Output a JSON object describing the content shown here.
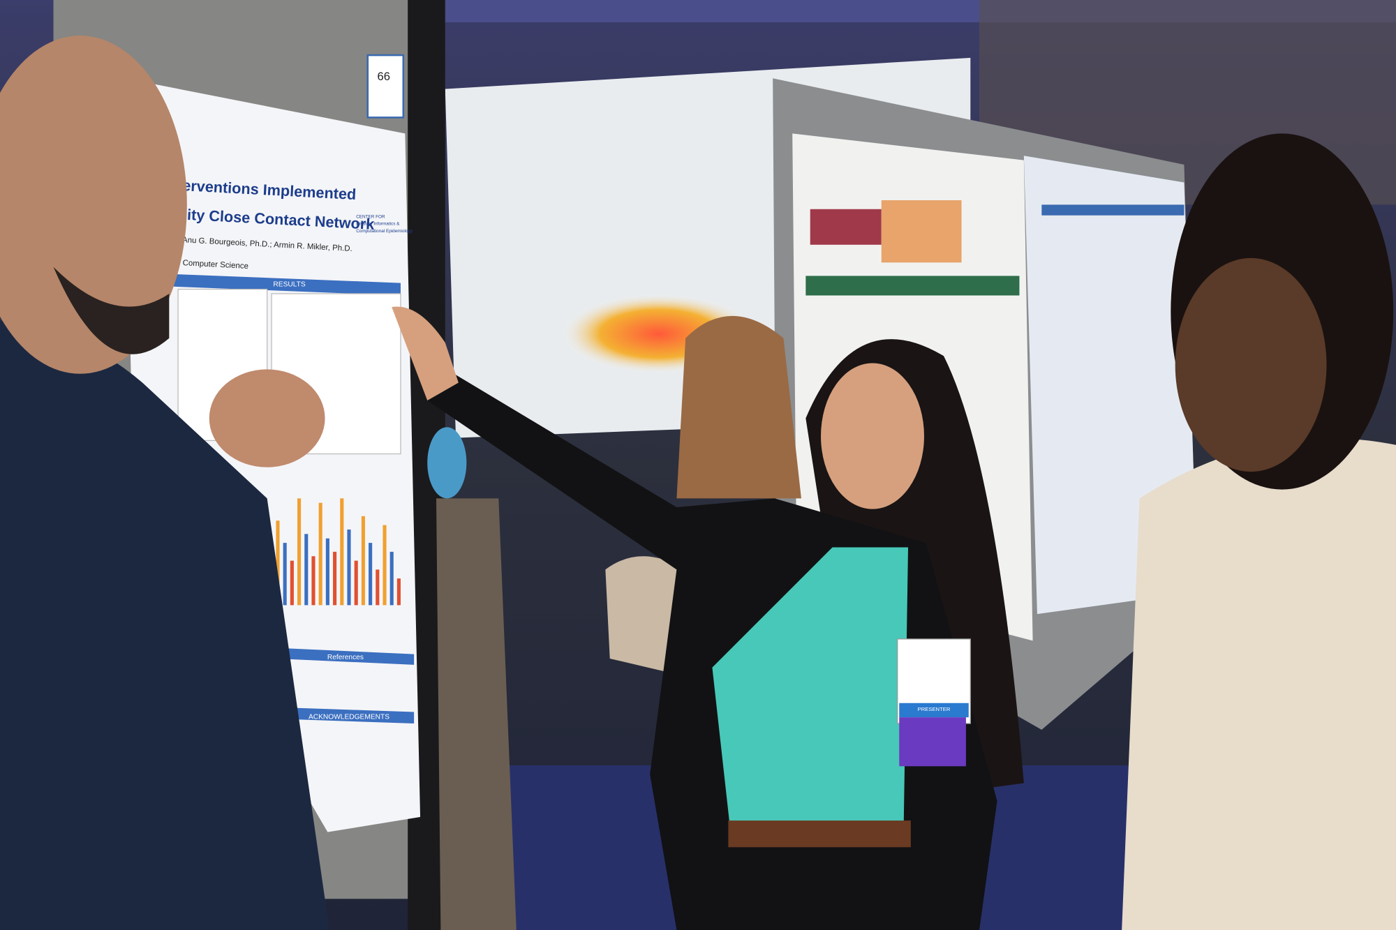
{
  "poster": {
    "board_number": "66",
    "title_lines": [
      "al Interventions Implemented",
      "versity Close Contact Network"
    ],
    "authors": "; Anu G. Bourgeois, Ph.D.; Armin R. Mikler, Ph.D.",
    "department": "Computer Science",
    "center": [
      "CENTER FOR",
      "Disaster Informatics &",
      "Computational Epidemiology"
    ],
    "sections": [
      "RESULTS",
      "References",
      "ACKNOWLEDGEMENTS"
    ]
  },
  "badge": {
    "role": "PRESENTER"
  }
}
